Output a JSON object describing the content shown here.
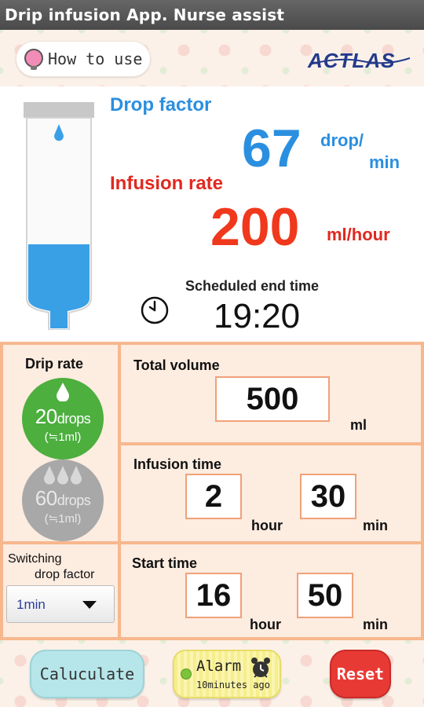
{
  "app": {
    "title": "Drip infusion App. Nurse assist"
  },
  "header": {
    "how_to_use_label": "How to use",
    "logo_text": "ACTLAS"
  },
  "display": {
    "drop_factor_label": "Drop factor",
    "drop_factor_value": "67",
    "drop_factor_unit_line1": "drop/",
    "drop_factor_unit_line2": "min",
    "infusion_rate_label": "Infusion rate",
    "infusion_rate_value": "200",
    "infusion_rate_unit": "ml/hour",
    "scheduled_end_label": "Scheduled end time",
    "scheduled_end_value": "19:20",
    "bag_fill_fraction": 0.3
  },
  "drip_rate": {
    "title": "Drip rate",
    "options": [
      {
        "number": "20",
        "unit": "drops",
        "sub": "(≒1ml)",
        "color": "#4caf3e",
        "selected": true
      },
      {
        "number": "60",
        "unit": "drops",
        "sub": "(≒1ml)",
        "color": "#a8a8a8",
        "selected": false
      }
    ]
  },
  "switching": {
    "title_line1": "Switching",
    "title_line2": "drop factor",
    "selected": "1min"
  },
  "inputs": {
    "total_volume": {
      "label": "Total volume",
      "value": "500",
      "unit": "ml"
    },
    "infusion_time": {
      "label": "Infusion time",
      "hour_value": "2",
      "hour_unit": "hour",
      "min_value": "30",
      "min_unit": "min"
    },
    "start_time": {
      "label": "Start time",
      "hour_value": "16",
      "hour_unit": "hour",
      "min_value": "50",
      "min_unit": "min"
    }
  },
  "footer": {
    "calculate_label": "Caluculate",
    "alarm_label": "Alarm",
    "alarm_sub": "10minutes ago",
    "reset_label": "Reset"
  },
  "colors": {
    "accent_blue": "#2b8fe0",
    "accent_red": "#e2281f",
    "grid_border": "#f7b78e",
    "cell_bg": "#fdece0",
    "liquid": "#3aa0e6"
  }
}
